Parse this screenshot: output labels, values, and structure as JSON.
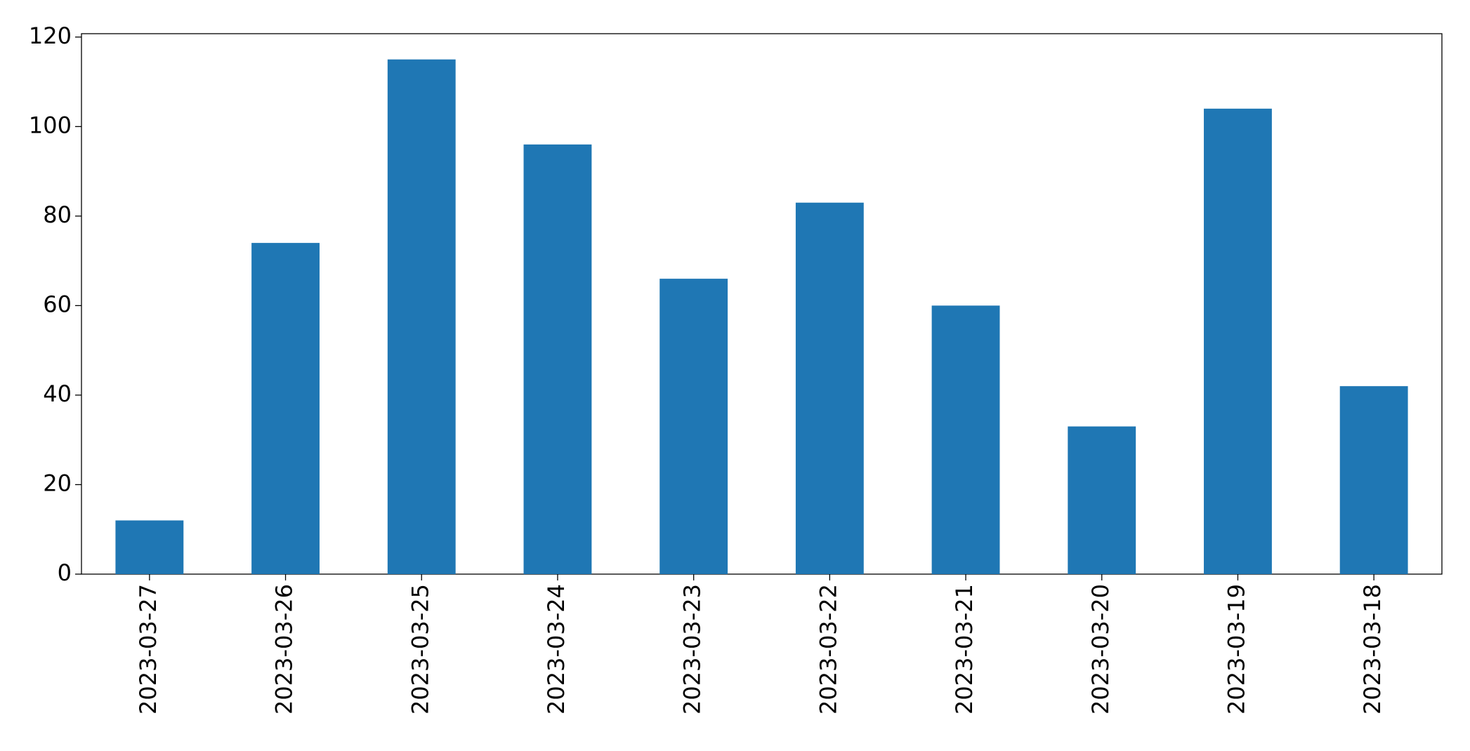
{
  "chart_data": {
    "type": "bar",
    "categories": [
      "2023-03-27",
      "2023-03-26",
      "2023-03-25",
      "2023-03-24",
      "2023-03-23",
      "2023-03-22",
      "2023-03-21",
      "2023-03-20",
      "2023-03-19",
      "2023-03-18"
    ],
    "values": [
      12,
      74,
      115,
      96,
      66,
      83,
      60,
      33,
      104,
      42
    ],
    "color": "#1f77b4",
    "ylim": [
      0,
      120.75
    ],
    "yticks": [
      0,
      20,
      40,
      60,
      80,
      100,
      120
    ],
    "grid": false
  }
}
